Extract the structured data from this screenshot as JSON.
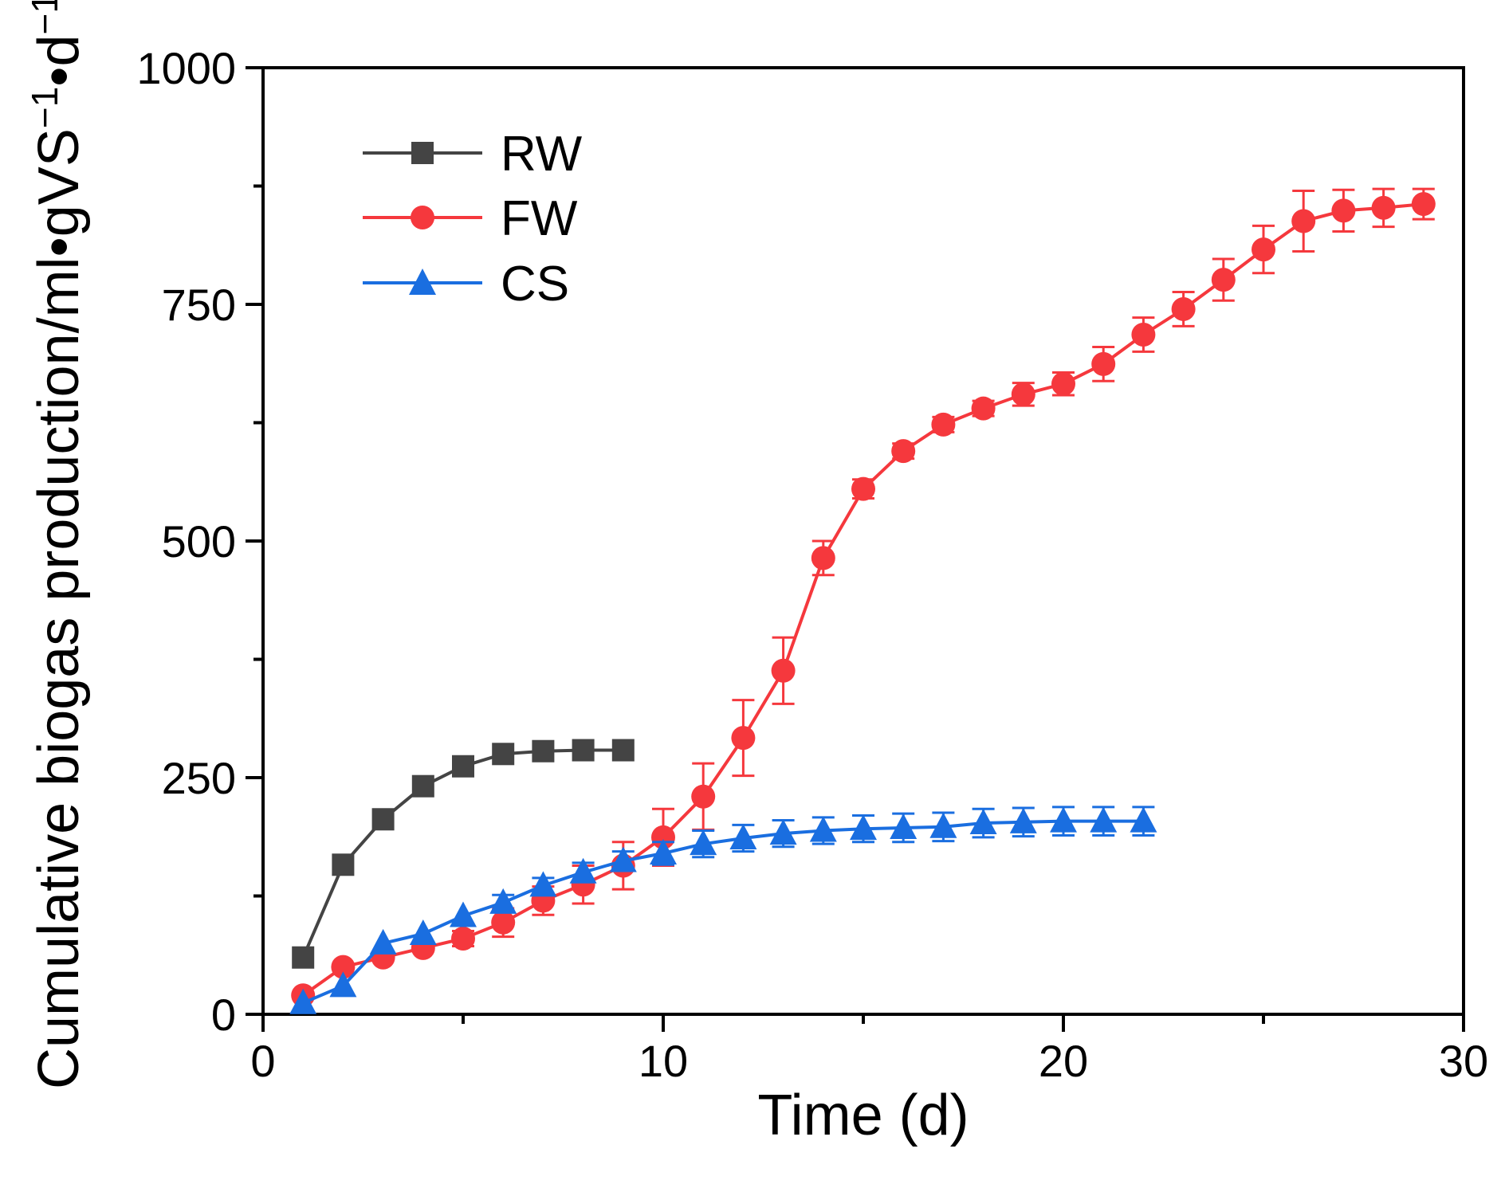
{
  "chart_data": {
    "type": "line",
    "xlabel": "Time (d)",
    "ylabel_main": "Cumulative biogas production/ml•gVS",
    "ylabel_sup1": "−1",
    "ylabel_mid": "•d",
    "ylabel_sup2": "−1",
    "xlim": [
      0,
      30
    ],
    "ylim": [
      0,
      1000
    ],
    "x_ticks": [
      0,
      10,
      20,
      30
    ],
    "x_tick_labels": [
      "0",
      "10",
      "20",
      "30"
    ],
    "x_minor_ticks": [
      5,
      15,
      25
    ],
    "y_ticks": [
      0,
      250,
      500,
      750,
      1000
    ],
    "y_tick_labels": [
      "0",
      "250",
      "500",
      "750",
      "1000"
    ],
    "y_minor_ticks": [
      125,
      375,
      625,
      875
    ],
    "legend_position": "top-left",
    "series": [
      {
        "name": "RW",
        "color": "#444444",
        "marker": "square",
        "x": [
          1,
          2,
          3,
          4,
          5,
          6,
          7,
          8,
          9
        ],
        "y": [
          60,
          158,
          206,
          241,
          262,
          275,
          278,
          279,
          279
        ],
        "err": [
          0,
          0,
          0,
          0,
          0,
          0,
          0,
          0,
          0
        ]
      },
      {
        "name": "FW",
        "color": "#f5383d",
        "marker": "circle",
        "x": [
          1,
          2,
          3,
          4,
          5,
          6,
          7,
          8,
          9,
          10,
          11,
          12,
          13,
          14,
          15,
          16,
          17,
          18,
          19,
          20,
          21,
          22,
          23,
          24,
          25,
          26,
          27,
          28,
          29
        ],
        "y": [
          20,
          50,
          60,
          70,
          80,
          97,
          120,
          137,
          157,
          187,
          230,
          292,
          363,
          482,
          555,
          595,
          623,
          640,
          655,
          666,
          687,
          718,
          745,
          776,
          808,
          838,
          849,
          852,
          856
        ],
        "err": [
          0,
          0,
          0,
          0,
          8,
          15,
          15,
          20,
          25,
          30,
          35,
          40,
          35,
          18,
          10,
          8,
          8,
          8,
          12,
          12,
          18,
          18,
          18,
          22,
          25,
          32,
          22,
          20,
          16
        ]
      },
      {
        "name": "CS",
        "color": "#1a6ee0",
        "marker": "triangle",
        "x": [
          1,
          2,
          3,
          4,
          5,
          6,
          7,
          8,
          9,
          10,
          11,
          12,
          13,
          14,
          15,
          16,
          17,
          18,
          19,
          20,
          21,
          22
        ],
        "y": [
          12,
          30,
          75,
          85,
          104,
          118,
          136,
          150,
          162,
          170,
          180,
          186,
          191,
          194,
          196,
          197,
          198,
          202,
          203,
          204,
          204,
          204
        ],
        "err": [
          0,
          0,
          0,
          0,
          0,
          8,
          8,
          10,
          10,
          12,
          14,
          14,
          14,
          14,
          14,
          15,
          15,
          15,
          15,
          15,
          15,
          15
        ]
      }
    ]
  }
}
